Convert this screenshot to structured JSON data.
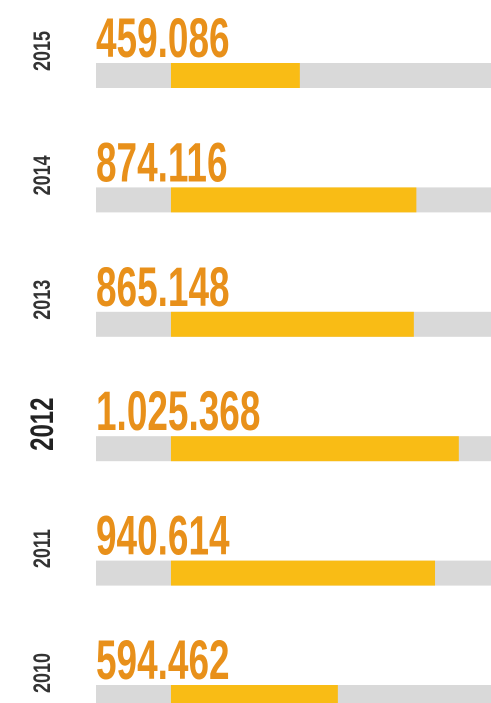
{
  "chart_data": {
    "type": "hbar",
    "categories": [
      "2015",
      "2014",
      "2013",
      "2012",
      "2011",
      "2010"
    ],
    "values": [
      459086,
      874116,
      865148,
      1025368,
      940614,
      594462
    ],
    "value_labels": [
      "459.086",
      "874.116",
      "865.148",
      "1.025.368",
      "940.614",
      "594.462"
    ],
    "color": "#f9bc15",
    "track_color": "#d9d9d9",
    "label_color": "#e8901a",
    "xlim": [
      -267000,
      1140000
    ],
    "highlight": "2012"
  }
}
